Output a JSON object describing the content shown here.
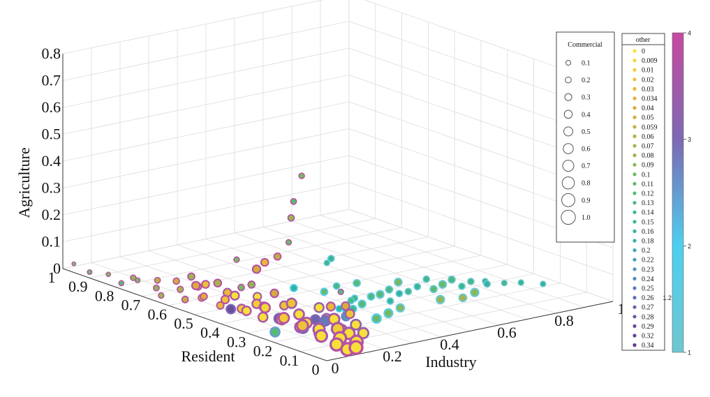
{
  "chart_data": {
    "type": "scatter",
    "subtype": "3d-bubble",
    "title": "",
    "xlabel": "Industry",
    "ylabel": "Resident",
    "zlabel": "Agriculture",
    "xlim": [
      0,
      1
    ],
    "ylim": [
      0,
      1
    ],
    "zlim": [
      0,
      0.8
    ],
    "x_ticks": [
      "0",
      "0.2",
      "0.4",
      "0.6",
      "0.8",
      "1"
    ],
    "y_ticks": [
      "0",
      "0.1",
      "0.2",
      "0.3",
      "0.4",
      "0.5",
      "0.6",
      "0.7",
      "0.8",
      "0.9",
      "1"
    ],
    "z_ticks": [
      "0",
      "0.1",
      "0.2",
      "0.3",
      "0.4",
      "0.5",
      "0.6",
      "0.7",
      "0.8"
    ],
    "grid": true,
    "size_legend": {
      "title": "Commercial",
      "entries": [
        "0.1",
        "0.2",
        "0.3",
        "0.4",
        "0.5",
        "0.6",
        "0.7",
        "0.8",
        "0.9",
        "1.0"
      ],
      "values": [
        0.1,
        0.2,
        0.3,
        0.4,
        0.5,
        0.6,
        0.7,
        0.8,
        0.9,
        1.0
      ]
    },
    "color_legend": {
      "title": "other",
      "entries": [
        "0",
        "0.009",
        "0.01",
        "0.02",
        "0.03",
        "0.034",
        "0.04",
        "0.05",
        "0.059",
        "0.06",
        "0.07",
        "0.08",
        "0.09",
        "0.1",
        "0.11",
        "0.12",
        "0.13",
        "0.14",
        "0.15",
        "0.16",
        "0.18",
        "0.2",
        "0.22",
        "0.23",
        "0.24",
        "0.25",
        "0.26",
        "0.27",
        "0.28",
        "0.29",
        "0.32",
        "0.34"
      ],
      "colors": [
        "#f7e03a",
        "#f5d637",
        "#f1cc35",
        "#edc236",
        "#e9b838",
        "#e4b03a",
        "#deab3c",
        "#d4ac3e",
        "#c7af42",
        "#b9b146",
        "#a9b44c",
        "#98b652",
        "#87b859",
        "#76b960",
        "#66ba6a",
        "#57ba74",
        "#4ab97f",
        "#3fb88a",
        "#36b695",
        "#31b3a0",
        "#34aeaa",
        "#3da6b4",
        "#479dbb",
        "#5093bf",
        "#5888c0",
        "#5f7cbe",
        "#6570b9",
        "#6964b2",
        "#6b58a9",
        "#6c4c9e",
        "#6b4192",
        "#673685"
      ]
    },
    "colorbar": {
      "ticks": [
        "1",
        "2",
        "3",
        "4"
      ],
      "range": [
        1,
        4
      ],
      "colors": [
        "#6fc7cf",
        "#4ecff0",
        "#7d69b3",
        "#c64aa0"
      ],
      "extra_label": "1.2"
    },
    "series_encoding": {
      "size": "Commercial",
      "fill": "other",
      "edge": "colorbar"
    },
    "points": [
      {
        "x": 0.02,
        "y": 0.98,
        "z": 0.02,
        "c": 0.03,
        "o": 0.1,
        "e": 4.0
      },
      {
        "x": 0.02,
        "y": 0.92,
        "z": 0.01,
        "c": 0.06,
        "o": 0.11,
        "e": 3.9
      },
      {
        "x": 0.03,
        "y": 0.86,
        "z": 0.02,
        "c": 0.05,
        "o": 0.1,
        "e": 3.9
      },
      {
        "x": 0.02,
        "y": 0.8,
        "z": 0.01,
        "c": 0.08,
        "o": 0.12,
        "e": 3.9
      },
      {
        "x": 0.04,
        "y": 0.76,
        "z": 0.03,
        "c": 0.07,
        "o": 0.1,
        "e": 3.8
      },
      {
        "x": 0.05,
        "y": 0.7,
        "z": 0.02,
        "c": 0.12,
        "o": 0.09,
        "e": 3.9
      },
      {
        "x": 0.03,
        "y": 0.66,
        "z": 0.01,
        "c": 0.1,
        "o": 0.08,
        "e": 3.8
      },
      {
        "x": 0.06,
        "y": 0.62,
        "z": 0.04,
        "c": 0.14,
        "o": 0.07,
        "e": 3.8
      },
      {
        "x": 0.04,
        "y": 0.58,
        "z": 0.02,
        "c": 0.16,
        "o": 0.06,
        "e": 3.9
      },
      {
        "x": 0.07,
        "y": 0.55,
        "z": 0.03,
        "c": 0.18,
        "o": 0.05,
        "e": 3.7
      },
      {
        "x": 0.05,
        "y": 0.52,
        "z": 0.05,
        "c": 0.2,
        "o": 0.04,
        "e": 3.8
      },
      {
        "x": 0.08,
        "y": 0.49,
        "z": 0.02,
        "c": 0.22,
        "o": 0.03,
        "e": 3.7
      },
      {
        "x": 0.06,
        "y": 0.45,
        "z": 0.06,
        "c": 0.3,
        "o": 0.02,
        "e": 3.8
      },
      {
        "x": 0.09,
        "y": 0.42,
        "z": 0.03,
        "c": 0.35,
        "o": 0.01,
        "e": 3.7
      },
      {
        "x": 0.07,
        "y": 0.38,
        "z": 0.04,
        "c": 0.4,
        "o": 0.0,
        "e": 3.8
      },
      {
        "x": 0.1,
        "y": 0.35,
        "z": 0.02,
        "c": 0.45,
        "o": 0.0,
        "e": 3.6
      },
      {
        "x": 0.08,
        "y": 0.32,
        "z": 0.07,
        "c": 0.5,
        "o": 0.009,
        "e": 3.8
      },
      {
        "x": 0.11,
        "y": 0.29,
        "z": 0.03,
        "c": 0.55,
        "o": 0.0,
        "e": 3.7
      },
      {
        "x": 0.09,
        "y": 0.26,
        "z": 0.05,
        "c": 0.6,
        "o": 0.01,
        "e": 3.8
      },
      {
        "x": 0.12,
        "y": 0.23,
        "z": 0.02,
        "c": 0.65,
        "o": 0.0,
        "e": 3.6
      },
      {
        "x": 0.1,
        "y": 0.2,
        "z": 0.04,
        "c": 0.7,
        "o": 0.02,
        "e": 3.7
      },
      {
        "x": 0.13,
        "y": 0.17,
        "z": 0.03,
        "c": 0.75,
        "o": 0.0,
        "e": 3.6
      },
      {
        "x": 0.11,
        "y": 0.14,
        "z": 0.02,
        "c": 0.8,
        "o": 0.0,
        "e": 3.7
      },
      {
        "x": 0.14,
        "y": 0.11,
        "z": 0.05,
        "c": 0.85,
        "o": 0.01,
        "e": 3.6
      },
      {
        "x": 0.12,
        "y": 0.08,
        "z": 0.03,
        "c": 0.9,
        "o": 0.0,
        "e": 3.8
      },
      {
        "x": 0.15,
        "y": 0.05,
        "z": 0.02,
        "c": 0.95,
        "o": 0.0,
        "e": 3.7
      },
      {
        "x": 0.13,
        "y": 0.03,
        "z": 0.01,
        "c": 1.0,
        "o": 0.0,
        "e": 3.9
      },
      {
        "x": 0.1,
        "y": 0.03,
        "z": 0.01,
        "c": 0.95,
        "o": 0.0,
        "e": 3.8
      },
      {
        "x": 0.09,
        "y": 0.06,
        "z": 0.02,
        "c": 0.9,
        "o": 0.0,
        "e": 3.7
      },
      {
        "x": 0.17,
        "y": 0.1,
        "z": 0.03,
        "c": 0.75,
        "o": 0.0,
        "e": 3.6
      },
      {
        "x": 0.19,
        "y": 0.15,
        "z": 0.02,
        "c": 0.7,
        "o": 0.01,
        "e": 3.5
      },
      {
        "x": 0.21,
        "y": 0.2,
        "z": 0.04,
        "c": 0.65,
        "o": 0.0,
        "e": 3.6
      },
      {
        "x": 0.16,
        "y": 0.25,
        "z": 0.02,
        "c": 0.6,
        "o": 0.0,
        "e": 3.7
      },
      {
        "x": 0.18,
        "y": 0.3,
        "z": 0.03,
        "c": 0.55,
        "o": 0.0,
        "e": 3.6
      },
      {
        "x": 0.2,
        "y": 0.35,
        "z": 0.05,
        "c": 0.5,
        "o": 0.02,
        "e": 3.5
      },
      {
        "x": 0.15,
        "y": 0.4,
        "z": 0.03,
        "c": 0.45,
        "o": 0.0,
        "e": 3.7
      },
      {
        "x": 0.17,
        "y": 0.45,
        "z": 0.02,
        "c": 0.4,
        "o": 0.01,
        "e": 3.6
      },
      {
        "x": 0.14,
        "y": 0.5,
        "z": 0.04,
        "c": 0.35,
        "o": 0.0,
        "e": 3.7
      },
      {
        "x": 0.16,
        "y": 0.55,
        "z": 0.03,
        "c": 0.3,
        "o": 0.03,
        "e": 3.6
      },
      {
        "x": 0.13,
        "y": 0.6,
        "z": 0.05,
        "c": 0.25,
        "o": 0.02,
        "e": 3.8
      },
      {
        "x": 0.15,
        "y": 0.65,
        "z": 0.02,
        "c": 0.2,
        "o": 0.04,
        "e": 3.7
      },
      {
        "x": 0.12,
        "y": 0.7,
        "z": 0.03,
        "c": 0.15,
        "o": 0.05,
        "e": 3.8
      },
      {
        "x": 0.1,
        "y": 0.75,
        "z": 0.02,
        "c": 0.12,
        "o": 0.06,
        "e": 3.8
      },
      {
        "x": 0.08,
        "y": 0.82,
        "z": 0.01,
        "c": 0.1,
        "o": 0.08,
        "e": 3.9
      },
      {
        "x": 0.22,
        "y": 0.1,
        "z": 0.02,
        "c": 0.6,
        "o": 0.0,
        "e": 3.4
      },
      {
        "x": 0.24,
        "y": 0.15,
        "z": 0.03,
        "c": 0.55,
        "o": 0.0,
        "e": 3.3
      },
      {
        "x": 0.23,
        "y": 0.25,
        "z": 0.02,
        "c": 0.5,
        "o": 0.01,
        "e": 3.4
      },
      {
        "x": 0.25,
        "y": 0.3,
        "z": 0.04,
        "c": 0.45,
        "o": 0.0,
        "e": 3.3
      },
      {
        "x": 0.22,
        "y": 0.4,
        "z": 0.02,
        "c": 0.35,
        "o": 0.02,
        "e": 3.5
      },
      {
        "x": 0.2,
        "y": 0.48,
        "z": 0.03,
        "c": 0.3,
        "o": 0.0,
        "e": 3.5
      },
      {
        "x": 0.12,
        "y": 0.22,
        "z": 0.02,
        "c": 0.6,
        "o": 0.34,
        "e": 3.0
      },
      {
        "x": 0.14,
        "y": 0.18,
        "z": 0.01,
        "c": 0.55,
        "o": 0.32,
        "e": 3.0
      },
      {
        "x": 0.11,
        "y": 0.3,
        "z": 0.03,
        "c": 0.5,
        "o": 0.29,
        "e": 3.0
      },
      {
        "x": 0.2,
        "y": 0.26,
        "z": 0.02,
        "c": 0.45,
        "o": 0.27,
        "e": 3.0
      },
      {
        "x": 0.18,
        "y": 0.2,
        "z": 0.04,
        "c": 0.5,
        "o": 0.25,
        "e": 3.0
      },
      {
        "x": 0.27,
        "y": 0.22,
        "z": 0.03,
        "c": 0.35,
        "o": 0.22,
        "e": 2.8
      },
      {
        "x": 0.08,
        "y": 0.45,
        "z": 0.02,
        "c": 0.4,
        "o": 0.3,
        "e": 3.0
      },
      {
        "x": 0.05,
        "y": 0.25,
        "z": 0.01,
        "c": 0.45,
        "o": 0.12,
        "e": 2.5
      },
      {
        "x": 0.06,
        "y": 0.16,
        "z": 0.62,
        "c": 0.1,
        "o": 0.1,
        "e": 3.9
      },
      {
        "x": 0.05,
        "y": 0.18,
        "z": 0.52,
        "c": 0.12,
        "o": 0.12,
        "e": 3.9
      },
      {
        "x": 0.06,
        "y": 0.2,
        "z": 0.45,
        "c": 0.15,
        "o": 0.08,
        "e": 3.8
      },
      {
        "x": 0.07,
        "y": 0.22,
        "z": 0.35,
        "c": 0.1,
        "o": 0.11,
        "e": 3.9
      },
      {
        "x": 0.04,
        "y": 0.23,
        "z": 0.3,
        "c": 0.2,
        "o": 0.06,
        "e": 3.9
      },
      {
        "x": 0.06,
        "y": 0.3,
        "z": 0.25,
        "c": 0.25,
        "o": 0.03,
        "e": 3.8
      },
      {
        "x": 0.05,
        "y": 0.32,
        "z": 0.22,
        "c": 0.3,
        "o": 0.05,
        "e": 3.8
      },
      {
        "x": 0.06,
        "y": 0.35,
        "z": 0.15,
        "c": 0.2,
        "o": 0.09,
        "e": 3.8
      },
      {
        "x": 0.07,
        "y": 0.4,
        "z": 0.12,
        "c": 0.15,
        "o": 0.1,
        "e": 3.8
      },
      {
        "x": 0.08,
        "y": 0.5,
        "z": 0.1,
        "c": 0.25,
        "o": 0.07,
        "e": 3.8
      },
      {
        "x": 0.05,
        "y": 0.55,
        "z": 0.08,
        "c": 0.3,
        "o": 0.04,
        "e": 3.8
      },
      {
        "x": 0.08,
        "y": 0.6,
        "z": 0.09,
        "c": 0.2,
        "o": 0.08,
        "e": 3.8
      },
      {
        "x": 0.1,
        "y": 0.45,
        "z": 0.2,
        "c": 0.1,
        "o": 0.1,
        "e": 3.8
      },
      {
        "x": 0.14,
        "y": 0.35,
        "z": 0.1,
        "c": 0.3,
        "o": 0.05,
        "e": 3.7
      },
      {
        "x": 0.16,
        "y": 0.12,
        "z": 0.18,
        "c": 0.1,
        "o": 0.12,
        "e": 3.8
      },
      {
        "x": 0.18,
        "y": 0.18,
        "z": 0.1,
        "c": 0.35,
        "o": 0.03,
        "e": 3.7
      },
      {
        "x": 0.21,
        "y": 0.14,
        "z": 0.08,
        "c": 0.4,
        "o": 0.02,
        "e": 3.6
      },
      {
        "x": 0.25,
        "y": 0.2,
        "z": 0.08,
        "c": 0.3,
        "o": 0.04,
        "e": 3.5
      },
      {
        "x": 0.3,
        "y": 0.25,
        "z": 0.03,
        "c": 0.2,
        "o": 0.15,
        "e": 2.2
      },
      {
        "x": 0.32,
        "y": 0.3,
        "z": 0.02,
        "c": 0.15,
        "o": 0.16,
        "e": 2.0
      },
      {
        "x": 0.35,
        "y": 0.28,
        "z": 0.02,
        "c": 0.2,
        "o": 0.14,
        "e": 1.8
      },
      {
        "x": 0.38,
        "y": 0.32,
        "z": 0.03,
        "c": 0.15,
        "o": 0.13,
        "e": 1.7
      },
      {
        "x": 0.4,
        "y": 0.3,
        "z": 0.02,
        "c": 0.25,
        "o": 0.12,
        "e": 1.6
      },
      {
        "x": 0.42,
        "y": 0.35,
        "z": 0.02,
        "c": 0.15,
        "o": 0.14,
        "e": 1.5
      },
      {
        "x": 0.45,
        "y": 0.32,
        "z": 0.03,
        "c": 0.2,
        "o": 0.13,
        "e": 1.5
      },
      {
        "x": 0.48,
        "y": 0.28,
        "z": 0.02,
        "c": 0.15,
        "o": 0.15,
        "e": 1.4
      },
      {
        "x": 0.5,
        "y": 0.34,
        "z": 0.02,
        "c": 0.25,
        "o": 0.12,
        "e": 1.4
      },
      {
        "x": 0.53,
        "y": 0.3,
        "z": 0.03,
        "c": 0.15,
        "o": 0.16,
        "e": 1.3
      },
      {
        "x": 0.55,
        "y": 0.36,
        "z": 0.02,
        "c": 0.2,
        "o": 0.13,
        "e": 1.3
      },
      {
        "x": 0.58,
        "y": 0.32,
        "z": 0.02,
        "c": 0.15,
        "o": 0.14,
        "e": 1.2
      },
      {
        "x": 0.6,
        "y": 0.38,
        "z": 0.03,
        "c": 0.25,
        "o": 0.1,
        "e": 1.2
      },
      {
        "x": 0.63,
        "y": 0.34,
        "z": 0.02,
        "c": 0.15,
        "o": 0.15,
        "e": 1.2
      },
      {
        "x": 0.65,
        "y": 0.3,
        "z": 0.02,
        "c": 0.2,
        "o": 0.12,
        "e": 1.1
      },
      {
        "x": 0.68,
        "y": 0.36,
        "z": 0.03,
        "c": 0.15,
        "o": 0.14,
        "e": 1.1
      },
      {
        "x": 0.7,
        "y": 0.32,
        "z": 0.02,
        "c": 0.25,
        "o": 0.11,
        "e": 1.1
      },
      {
        "x": 0.73,
        "y": 0.28,
        "z": 0.02,
        "c": 0.15,
        "o": 0.15,
        "e": 1.1
      },
      {
        "x": 0.75,
        "y": 0.34,
        "z": 0.02,
        "c": 0.2,
        "o": 0.13,
        "e": 1.0
      },
      {
        "x": 0.78,
        "y": 0.3,
        "z": 0.02,
        "c": 0.15,
        "o": 0.14,
        "e": 1.0
      },
      {
        "x": 0.8,
        "y": 0.26,
        "z": 0.02,
        "c": 0.15,
        "o": 0.16,
        "e": 1.0
      },
      {
        "x": 0.83,
        "y": 0.3,
        "z": 0.01,
        "c": 0.1,
        "o": 0.15,
        "e": 1.0
      },
      {
        "x": 0.86,
        "y": 0.26,
        "z": 0.01,
        "c": 0.1,
        "o": 0.14,
        "e": 1.0
      },
      {
        "x": 0.9,
        "y": 0.24,
        "z": 0.01,
        "c": 0.1,
        "o": 0.15,
        "e": 1.0
      },
      {
        "x": 0.94,
        "y": 0.2,
        "z": 0.01,
        "c": 0.1,
        "o": 0.16,
        "e": 1.0
      },
      {
        "x": 0.36,
        "y": 0.4,
        "z": 0.04,
        "c": 0.2,
        "o": 0.11,
        "e": 1.8
      },
      {
        "x": 0.44,
        "y": 0.44,
        "z": 0.03,
        "c": 0.15,
        "o": 0.13,
        "e": 1.6
      },
      {
        "x": 0.52,
        "y": 0.45,
        "z": 0.02,
        "c": 0.2,
        "o": 0.12,
        "e": 1.4
      },
      {
        "x": 0.6,
        "y": 0.22,
        "z": 0.02,
        "c": 0.3,
        "o": 0.08,
        "e": 1.3
      },
      {
        "x": 0.66,
        "y": 0.2,
        "z": 0.02,
        "c": 0.25,
        "o": 0.07,
        "e": 1.2
      },
      {
        "x": 0.72,
        "y": 0.22,
        "z": 0.02,
        "c": 0.3,
        "o": 0.09,
        "e": 1.1
      },
      {
        "x": 0.4,
        "y": 0.2,
        "z": 0.02,
        "c": 0.35,
        "o": 0.1,
        "e": 1.6
      },
      {
        "x": 0.46,
        "y": 0.22,
        "z": 0.02,
        "c": 0.3,
        "o": 0.09,
        "e": 1.5
      },
      {
        "x": 0.34,
        "y": 0.18,
        "z": 0.02,
        "c": 0.4,
        "o": 0.11,
        "e": 1.8
      },
      {
        "x": 0.55,
        "y": 0.58,
        "z": 0.06,
        "c": 0.15,
        "o": 0.15,
        "e": 1.3
      },
      {
        "x": 0.48,
        "y": 0.52,
        "z": 0.08,
        "c": 0.1,
        "o": 0.14,
        "e": 1.4
      },
      {
        "x": 0.3,
        "y": 0.45,
        "z": 0.05,
        "c": 0.2,
        "o": 0.16,
        "e": 2.0
      }
    ]
  }
}
